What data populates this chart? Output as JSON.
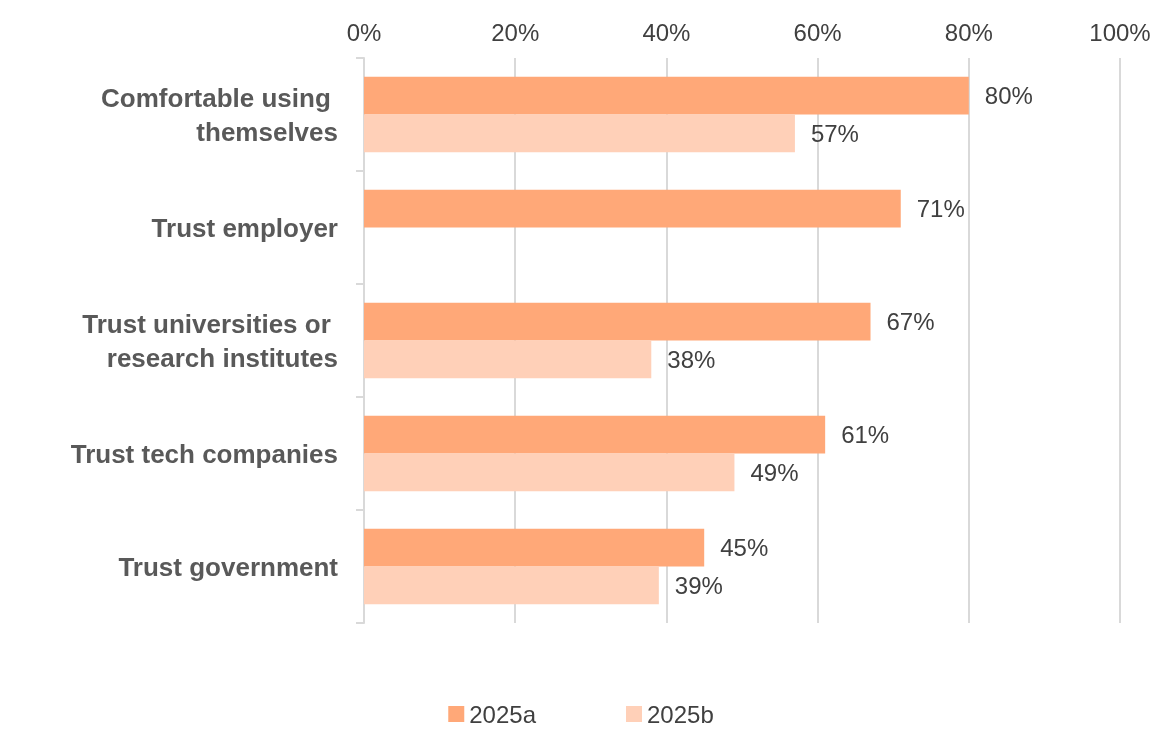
{
  "chart_data": {
    "type": "bar",
    "orientation": "horizontal",
    "categories": [
      "Comfortable using themselves",
      "Trust employer",
      "Trust universities or research institutes",
      "Trust tech companies",
      "Trust government"
    ],
    "series": [
      {
        "name": "2025a",
        "color": "#ffa878",
        "values": [
          80,
          71,
          67,
          61,
          45
        ],
        "value_labels": [
          "80%",
          "71%",
          "67%",
          "61%",
          "45%"
        ]
      },
      {
        "name": "2025b",
        "color": "#ffd0b8",
        "values": [
          57,
          null,
          38,
          49,
          39
        ],
        "value_labels": [
          "57%",
          null,
          "38%",
          "49%",
          "39%"
        ]
      }
    ],
    "xlim": [
      0,
      100
    ],
    "xticks": [
      {
        "value": 0,
        "label": "0%"
      },
      {
        "value": 20,
        "label": "20%"
      },
      {
        "value": 40,
        "label": "40%"
      },
      {
        "value": 60,
        "label": "60%"
      },
      {
        "value": 80,
        "label": "80%"
      },
      {
        "value": 100,
        "label": "100%"
      }
    ],
    "grid": "x",
    "legend": "bottom"
  }
}
